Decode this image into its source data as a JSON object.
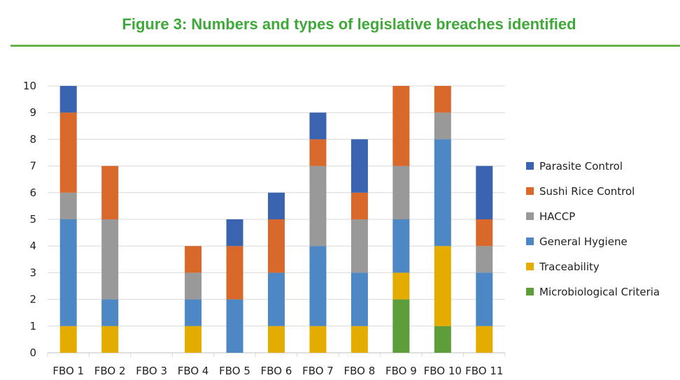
{
  "title": "Figure 3: Numbers and types of legislative breaches identified",
  "chart_data": {
    "type": "bar",
    "stacked": true,
    "categories": [
      "FBO 1",
      "FBO 2",
      "FBO 3",
      "FBO 4",
      "FBO 5",
      "FBO 6",
      "FBO 7",
      "FBO 8",
      "FBO 9",
      "FBO 10",
      "FBO 11"
    ],
    "ylim": [
      0,
      10
    ],
    "yticks": [
      "0",
      "1",
      "2",
      "3",
      "4",
      "5",
      "6",
      "7",
      "8",
      "9",
      "10"
    ],
    "grid": true,
    "legend_position": "right",
    "series": [
      {
        "name": "Microbiological Criteria",
        "color": "#5e9e3a",
        "values": [
          0,
          0,
          0,
          0,
          0,
          0,
          0,
          0,
          2,
          1,
          0
        ]
      },
      {
        "name": "Traceability",
        "color": "#e5ac00",
        "values": [
          1,
          1,
          0,
          1,
          0,
          1,
          1,
          1,
          1,
          3,
          1
        ]
      },
      {
        "name": "General Hygiene",
        "color": "#4e88c4",
        "values": [
          4,
          1,
          0,
          1,
          2,
          2,
          3,
          2,
          2,
          4,
          2
        ]
      },
      {
        "name": "HACCP",
        "color": "#999999",
        "values": [
          1,
          3,
          0,
          1,
          0,
          0,
          3,
          2,
          2,
          1,
          1
        ]
      },
      {
        "name": "Sushi Rice Control",
        "color": "#d9692a",
        "values": [
          3,
          2,
          0,
          1,
          2,
          2,
          1,
          1,
          3,
          1,
          1
        ]
      },
      {
        "name": "Parasite Control",
        "color": "#3a64b0",
        "values": [
          1,
          0,
          0,
          0,
          1,
          1,
          1,
          2,
          0,
          0,
          2
        ]
      }
    ]
  }
}
